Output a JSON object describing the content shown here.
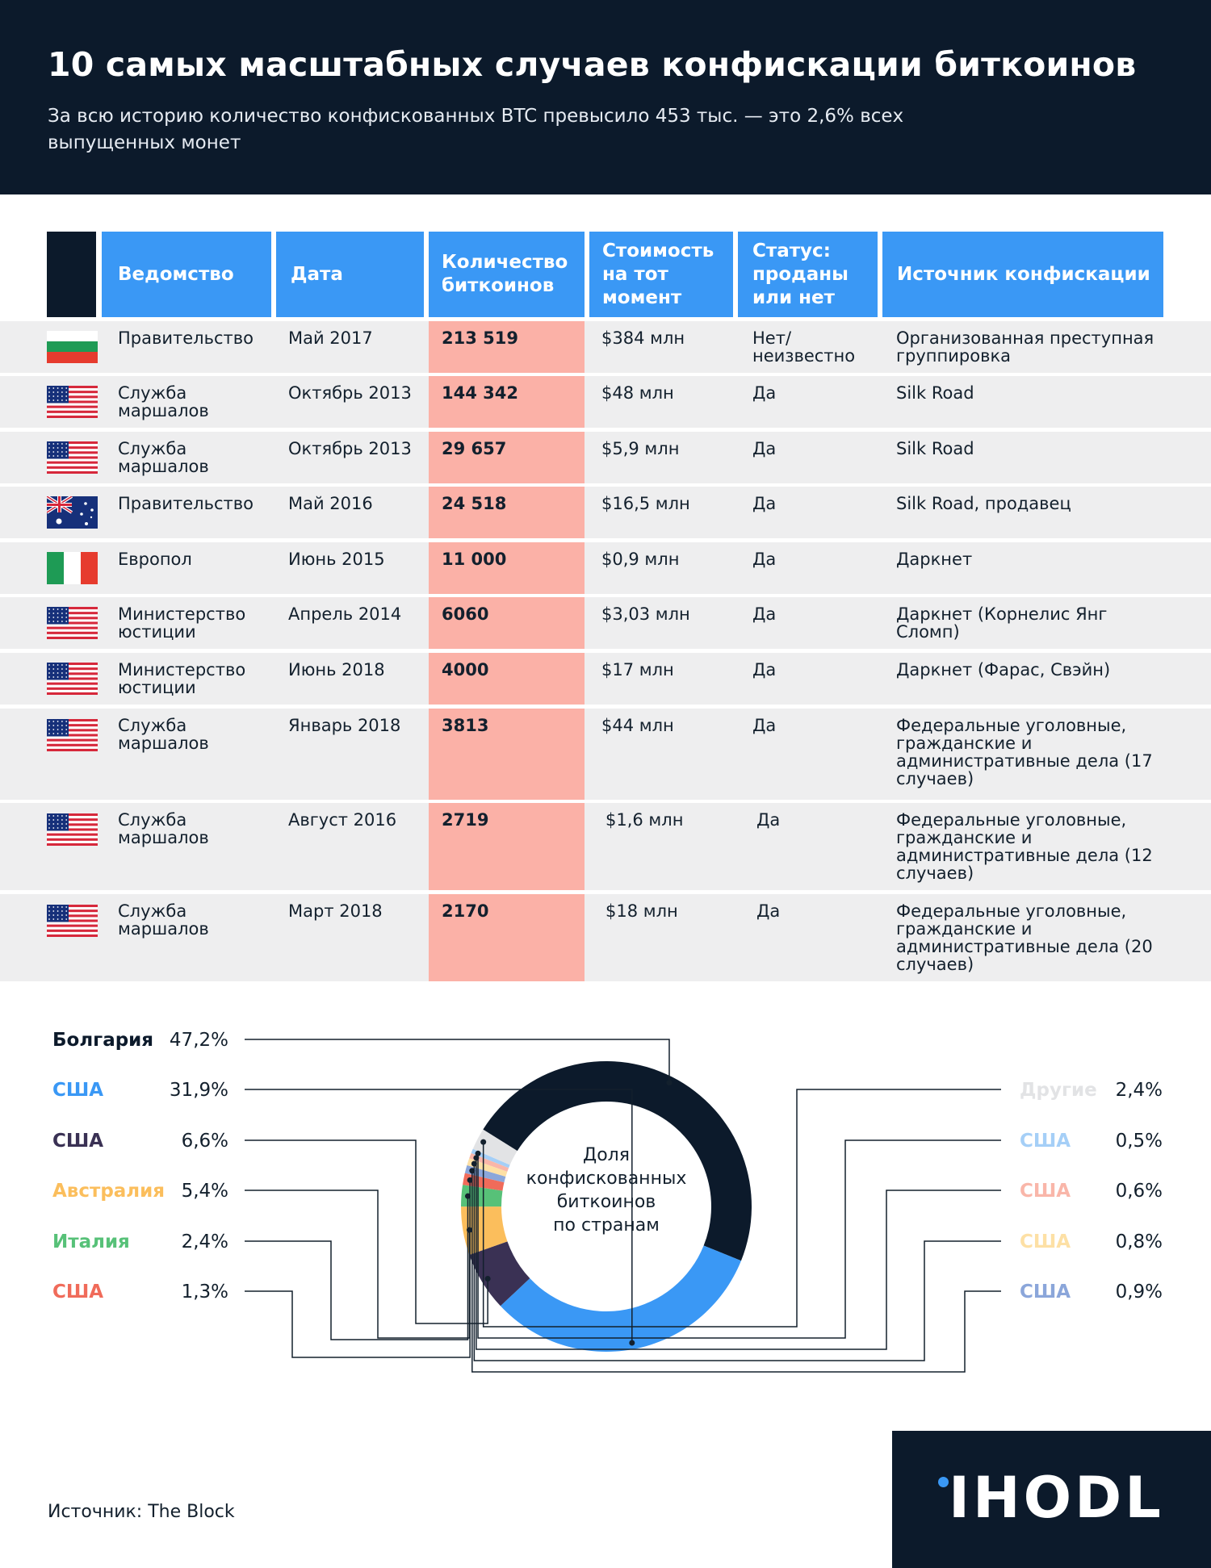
{
  "header": {
    "title": "10 самых масштабных случаев конфискации биткоинов",
    "subtitle": "За всю историю количество конфискованных BTC превысило 453 тыс. — это 2,6% всех выпущенных монет"
  },
  "table": {
    "columns": [
      "Ведомство",
      "Дата",
      "Количество биткоинов",
      "Стоимость на тот момент",
      "Статус: проданы или нет",
      "Источник конфискации"
    ],
    "rows": [
      {
        "flag": "bulgaria-flag",
        "agency": "Правительство",
        "date": "Май 2017",
        "qty": "213 519",
        "value": "$384 млн",
        "status": "Нет/ неизвестно",
        "source": "Организованная преступная группировка"
      },
      {
        "flag": "usa-flag",
        "agency": "Служба маршалов",
        "date": "Октябрь 2013",
        "qty": "144 342",
        "value": "$48 млн",
        "status": "Да",
        "source": "Silk Road"
      },
      {
        "flag": "usa-flag",
        "agency": "Служба маршалов",
        "date": "Октябрь 2013",
        "qty": "29 657",
        "value": "$5,9 млн",
        "status": "Да",
        "source": "Silk Road"
      },
      {
        "flag": "australia-flag",
        "agency": "Правительство",
        "date": "Май 2016",
        "qty": "24 518",
        "value": "$16,5 млн",
        "status": "Да",
        "source": "Silk Road, продавец"
      },
      {
        "flag": "italy-flag",
        "agency": "Европол",
        "date": "Июнь 2015",
        "qty": "11 000",
        "value": "$0,9 млн",
        "status": "Да",
        "source": "Даркнет"
      },
      {
        "flag": "usa-flag",
        "agency": "Министерство юстиции",
        "date": "Апрель 2014",
        "qty": "6060",
        "value": "$3,03 млн",
        "status": "Да",
        "source": "Даркнет (Корнелис Янг Сломп)"
      },
      {
        "flag": "usa-flag",
        "agency": "Министерство юстиции",
        "date": "Июнь 2018",
        "qty": "4000",
        "value": "$17 млн",
        "status": "Да",
        "source": "Даркнет (Фарас, Свэйн)"
      },
      {
        "flag": "usa-flag",
        "agency": "Служба маршалов",
        "date": "Январь 2018",
        "qty": "3813",
        "value": "$44 млн",
        "status": "Да",
        "source": "Федеральные уголовные, гражданские и административные дела (17 случаев)"
      },
      {
        "flag": "usa-flag",
        "agency": "Служба маршалов",
        "date": "Август 2016",
        "qty": "2719",
        "value": "$1,6 млн",
        "status": "Да",
        "source": "Федеральные уголовные, гражданские и административные дела (12 случаев)"
      },
      {
        "flag": "usa-flag",
        "agency": "Служба маршалов",
        "date": "Март 2018",
        "qty": "2170",
        "value": "$18 млн",
        "status": "Да",
        "source": "Федеральные уголовные, гражданские и административные дела (20 случаев)"
      }
    ]
  },
  "chart_data": {
    "type": "pie",
    "donut": true,
    "title": "Доля конфискованных биткоинов по странам",
    "slices": [
      {
        "label": "Болгария",
        "value": 47.2,
        "display": "47,2%",
        "color": "#0c1a2b"
      },
      {
        "label": "США",
        "value": 31.9,
        "display": "31,9%",
        "color": "#3a98f5"
      },
      {
        "label": "США",
        "value": 6.6,
        "display": "6,6%",
        "color": "#3a3154"
      },
      {
        "label": "Австралия",
        "value": 5.4,
        "display": "5,4%",
        "color": "#fbbe5c"
      },
      {
        "label": "Италия",
        "value": 2.4,
        "display": "2,4%",
        "color": "#57c178"
      },
      {
        "label": "США",
        "value": 1.3,
        "display": "1,3%",
        "color": "#f06b5a"
      },
      {
        "label": "США",
        "value": 0.9,
        "display": "0,9%",
        "color": "#8ba6da"
      },
      {
        "label": "США",
        "value": 0.8,
        "display": "0,8%",
        "color": "#fde0a5"
      },
      {
        "label": "США",
        "value": 0.6,
        "display": "0,6%",
        "color": "#f9b6a9"
      },
      {
        "label": "США",
        "value": 0.5,
        "display": "0,5%",
        "color": "#a5cff7"
      },
      {
        "label": "Другие",
        "value": 2.4,
        "display": "2,4%",
        "color": "#e2e3e5"
      }
    ]
  },
  "footer": {
    "source": "Источник: The Block",
    "logo": "IHODL"
  },
  "colors": {
    "navy": "#0c1a2b",
    "blue": "#3a98f5",
    "salmon": "#fbb1a7",
    "row_bg": "#eeeeef"
  }
}
